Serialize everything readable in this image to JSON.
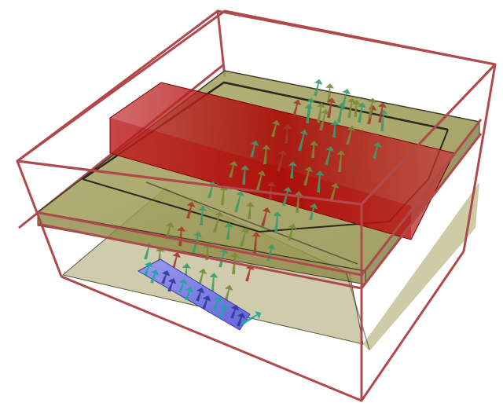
{
  "colors": {
    "background": "#ffffff",
    "bounding_box": "#b0494c",
    "slab_fill": "#9c9a4e",
    "slab_edge": "#3f3d2a",
    "red_plane": "#b40000",
    "arrow_green": "#3e9a6a",
    "arrow_olive": "#7a8a3a",
    "arrow_red": "#a33a2a",
    "arrow_blue": "#2a3a9a",
    "arrow_teal": "#1aa8a0",
    "blue_base": "#7f7fe0"
  },
  "scene": {
    "bounding_box": "domain-outline",
    "horizontal_slab": "soil-layer",
    "vertical_plane": "cut-plane",
    "vector_field": "arrow-glyphs",
    "source_patch": "injection-patch"
  }
}
